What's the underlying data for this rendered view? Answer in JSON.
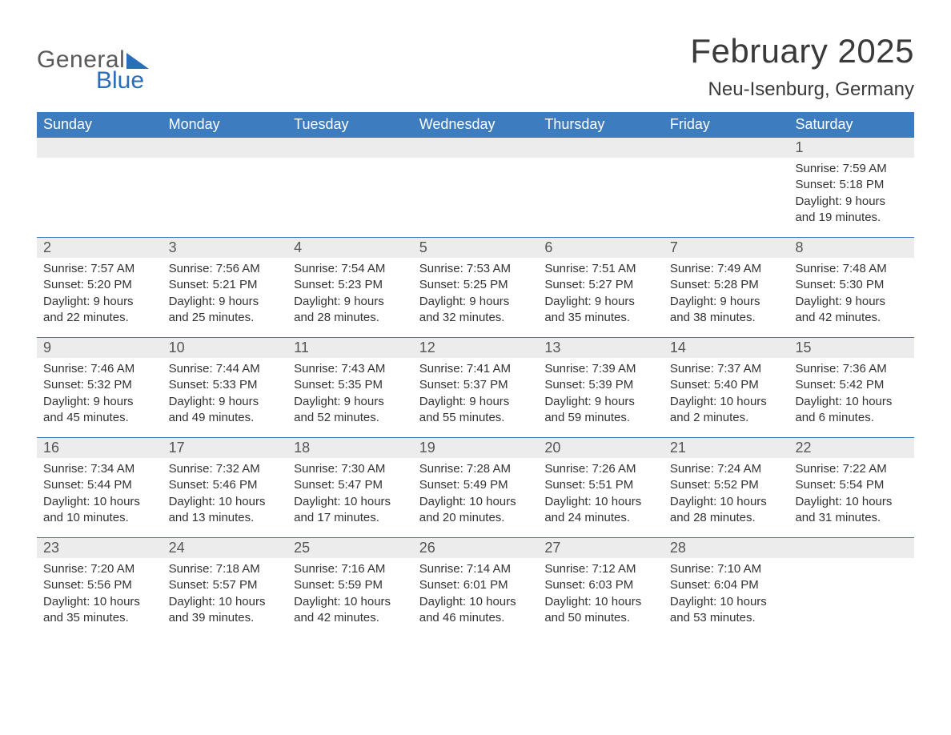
{
  "logo": {
    "text1": "General",
    "text2": "Blue"
  },
  "header": {
    "month_title": "February 2025",
    "location": "Neu-Isenburg, Germany"
  },
  "colors": {
    "header_bg": "#3c7cbf",
    "header_text": "#ffffff",
    "daynum_bg": "#ececec",
    "rule": "#3c7cbf",
    "logo_accent": "#2a6db8",
    "body_text": "#333333",
    "page_bg": "#ffffff"
  },
  "day_names": [
    "Sunday",
    "Monday",
    "Tuesday",
    "Wednesday",
    "Thursday",
    "Friday",
    "Saturday"
  ],
  "weeks": [
    [
      null,
      null,
      null,
      null,
      null,
      null,
      {
        "n": "1",
        "sunrise": "Sunrise: 7:59 AM",
        "sunset": "Sunset: 5:18 PM",
        "day1": "Daylight: 9 hours",
        "day2": "and 19 minutes."
      }
    ],
    [
      {
        "n": "2",
        "sunrise": "Sunrise: 7:57 AM",
        "sunset": "Sunset: 5:20 PM",
        "day1": "Daylight: 9 hours",
        "day2": "and 22 minutes."
      },
      {
        "n": "3",
        "sunrise": "Sunrise: 7:56 AM",
        "sunset": "Sunset: 5:21 PM",
        "day1": "Daylight: 9 hours",
        "day2": "and 25 minutes."
      },
      {
        "n": "4",
        "sunrise": "Sunrise: 7:54 AM",
        "sunset": "Sunset: 5:23 PM",
        "day1": "Daylight: 9 hours",
        "day2": "and 28 minutes."
      },
      {
        "n": "5",
        "sunrise": "Sunrise: 7:53 AM",
        "sunset": "Sunset: 5:25 PM",
        "day1": "Daylight: 9 hours",
        "day2": "and 32 minutes."
      },
      {
        "n": "6",
        "sunrise": "Sunrise: 7:51 AM",
        "sunset": "Sunset: 5:27 PM",
        "day1": "Daylight: 9 hours",
        "day2": "and 35 minutes."
      },
      {
        "n": "7",
        "sunrise": "Sunrise: 7:49 AM",
        "sunset": "Sunset: 5:28 PM",
        "day1": "Daylight: 9 hours",
        "day2": "and 38 minutes."
      },
      {
        "n": "8",
        "sunrise": "Sunrise: 7:48 AM",
        "sunset": "Sunset: 5:30 PM",
        "day1": "Daylight: 9 hours",
        "day2": "and 42 minutes."
      }
    ],
    [
      {
        "n": "9",
        "sunrise": "Sunrise: 7:46 AM",
        "sunset": "Sunset: 5:32 PM",
        "day1": "Daylight: 9 hours",
        "day2": "and 45 minutes."
      },
      {
        "n": "10",
        "sunrise": "Sunrise: 7:44 AM",
        "sunset": "Sunset: 5:33 PM",
        "day1": "Daylight: 9 hours",
        "day2": "and 49 minutes."
      },
      {
        "n": "11",
        "sunrise": "Sunrise: 7:43 AM",
        "sunset": "Sunset: 5:35 PM",
        "day1": "Daylight: 9 hours",
        "day2": "and 52 minutes."
      },
      {
        "n": "12",
        "sunrise": "Sunrise: 7:41 AM",
        "sunset": "Sunset: 5:37 PM",
        "day1": "Daylight: 9 hours",
        "day2": "and 55 minutes."
      },
      {
        "n": "13",
        "sunrise": "Sunrise: 7:39 AM",
        "sunset": "Sunset: 5:39 PM",
        "day1": "Daylight: 9 hours",
        "day2": "and 59 minutes."
      },
      {
        "n": "14",
        "sunrise": "Sunrise: 7:37 AM",
        "sunset": "Sunset: 5:40 PM",
        "day1": "Daylight: 10 hours",
        "day2": "and 2 minutes."
      },
      {
        "n": "15",
        "sunrise": "Sunrise: 7:36 AM",
        "sunset": "Sunset: 5:42 PM",
        "day1": "Daylight: 10 hours",
        "day2": "and 6 minutes."
      }
    ],
    [
      {
        "n": "16",
        "sunrise": "Sunrise: 7:34 AM",
        "sunset": "Sunset: 5:44 PM",
        "day1": "Daylight: 10 hours",
        "day2": "and 10 minutes."
      },
      {
        "n": "17",
        "sunrise": "Sunrise: 7:32 AM",
        "sunset": "Sunset: 5:46 PM",
        "day1": "Daylight: 10 hours",
        "day2": "and 13 minutes."
      },
      {
        "n": "18",
        "sunrise": "Sunrise: 7:30 AM",
        "sunset": "Sunset: 5:47 PM",
        "day1": "Daylight: 10 hours",
        "day2": "and 17 minutes."
      },
      {
        "n": "19",
        "sunrise": "Sunrise: 7:28 AM",
        "sunset": "Sunset: 5:49 PM",
        "day1": "Daylight: 10 hours",
        "day2": "and 20 minutes."
      },
      {
        "n": "20",
        "sunrise": "Sunrise: 7:26 AM",
        "sunset": "Sunset: 5:51 PM",
        "day1": "Daylight: 10 hours",
        "day2": "and 24 minutes."
      },
      {
        "n": "21",
        "sunrise": "Sunrise: 7:24 AM",
        "sunset": "Sunset: 5:52 PM",
        "day1": "Daylight: 10 hours",
        "day2": "and 28 minutes."
      },
      {
        "n": "22",
        "sunrise": "Sunrise: 7:22 AM",
        "sunset": "Sunset: 5:54 PM",
        "day1": "Daylight: 10 hours",
        "day2": "and 31 minutes."
      }
    ],
    [
      {
        "n": "23",
        "sunrise": "Sunrise: 7:20 AM",
        "sunset": "Sunset: 5:56 PM",
        "day1": "Daylight: 10 hours",
        "day2": "and 35 minutes."
      },
      {
        "n": "24",
        "sunrise": "Sunrise: 7:18 AM",
        "sunset": "Sunset: 5:57 PM",
        "day1": "Daylight: 10 hours",
        "day2": "and 39 minutes."
      },
      {
        "n": "25",
        "sunrise": "Sunrise: 7:16 AM",
        "sunset": "Sunset: 5:59 PM",
        "day1": "Daylight: 10 hours",
        "day2": "and 42 minutes."
      },
      {
        "n": "26",
        "sunrise": "Sunrise: 7:14 AM",
        "sunset": "Sunset: 6:01 PM",
        "day1": "Daylight: 10 hours",
        "day2": "and 46 minutes."
      },
      {
        "n": "27",
        "sunrise": "Sunrise: 7:12 AM",
        "sunset": "Sunset: 6:03 PM",
        "day1": "Daylight: 10 hours",
        "day2": "and 50 minutes."
      },
      {
        "n": "28",
        "sunrise": "Sunrise: 7:10 AM",
        "sunset": "Sunset: 6:04 PM",
        "day1": "Daylight: 10 hours",
        "day2": "and 53 minutes."
      },
      null
    ]
  ]
}
